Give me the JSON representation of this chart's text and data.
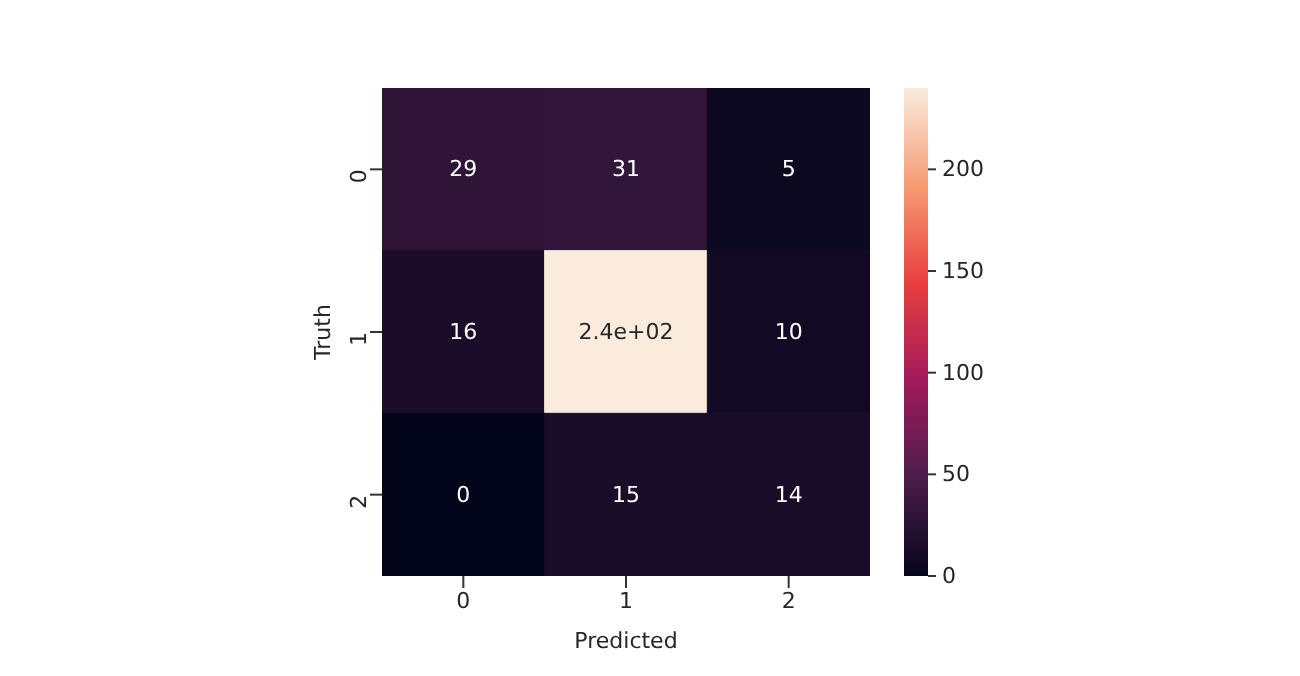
{
  "chart_data": {
    "type": "heatmap",
    "xlabel": "Predicted",
    "ylabel": "Truth",
    "categories": [
      "0",
      "1",
      "2"
    ],
    "y_categories": [
      "0",
      "1",
      "2"
    ],
    "cells": [
      [
        29,
        31,
        5
      ],
      [
        16,
        240,
        10
      ],
      [
        0,
        15,
        14
      ]
    ],
    "cell_labels": [
      [
        "29",
        "31",
        "5"
      ],
      [
        "16",
        "2.4e+02",
        "10"
      ],
      [
        "0",
        "15",
        "14"
      ]
    ],
    "clim": [
      0,
      240
    ],
    "cticks": [
      0,
      50,
      100,
      150,
      200
    ]
  }
}
